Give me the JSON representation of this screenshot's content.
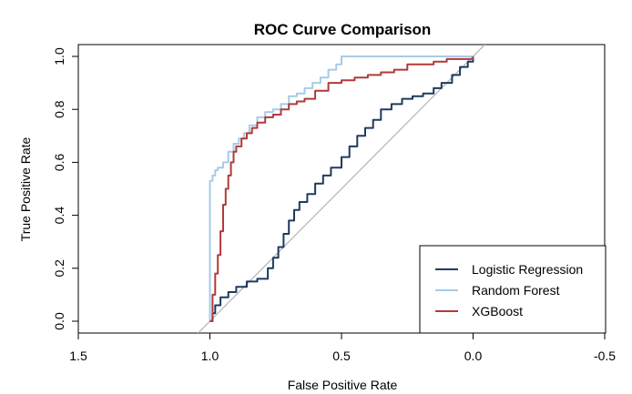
{
  "chart_data": {
    "type": "line",
    "title": "ROC Curve Comparison",
    "xlabel": "False Positive Rate",
    "ylabel": "True Positive Rate",
    "x_axis_reversed": true,
    "xlim": [
      1.5,
      -0.5
    ],
    "ylim": [
      0.0,
      1.0
    ],
    "x_ticks": [
      "1.5",
      "1.0",
      "0.5",
      "0.0",
      "-0.5"
    ],
    "y_ticks": [
      "0.0",
      "0.2",
      "0.4",
      "0.6",
      "0.8",
      "1.0"
    ],
    "legend_position": "bottom-right",
    "grid": false,
    "reference_line": {
      "points": [
        [
          1.05,
          -0.05
        ],
        [
          -0.05,
          1.05
        ]
      ],
      "color": "#b3b3b3"
    },
    "series": [
      {
        "name": "Logistic Regression",
        "color": "#1f3a5f",
        "x": [
          1.0,
          0.99,
          0.98,
          0.96,
          0.93,
          0.9,
          0.86,
          0.82,
          0.78,
          0.76,
          0.74,
          0.72,
          0.7,
          0.68,
          0.66,
          0.63,
          0.6,
          0.57,
          0.54,
          0.5,
          0.47,
          0.44,
          0.41,
          0.38,
          0.35,
          0.31,
          0.27,
          0.23,
          0.19,
          0.15,
          0.12,
          0.08,
          0.05,
          0.02,
          0.0
        ],
        "y": [
          0.0,
          0.03,
          0.06,
          0.09,
          0.11,
          0.13,
          0.15,
          0.16,
          0.2,
          0.24,
          0.28,
          0.33,
          0.38,
          0.42,
          0.45,
          0.48,
          0.52,
          0.55,
          0.58,
          0.62,
          0.66,
          0.7,
          0.73,
          0.76,
          0.8,
          0.82,
          0.84,
          0.85,
          0.86,
          0.88,
          0.9,
          0.93,
          0.96,
          0.98,
          1.0
        ]
      },
      {
        "name": "Random Forest",
        "color": "#a6cbe8",
        "x": [
          1.0,
          1.0,
          0.99,
          0.98,
          0.97,
          0.95,
          0.93,
          0.91,
          0.89,
          0.87,
          0.85,
          0.82,
          0.79,
          0.76,
          0.73,
          0.7,
          0.67,
          0.64,
          0.61,
          0.58,
          0.55,
          0.52,
          0.5,
          0.45,
          0.35,
          0.2,
          0.0
        ],
        "y": [
          0.0,
          0.53,
          0.55,
          0.57,
          0.58,
          0.6,
          0.64,
          0.67,
          0.69,
          0.71,
          0.74,
          0.77,
          0.79,
          0.8,
          0.82,
          0.85,
          0.86,
          0.88,
          0.9,
          0.92,
          0.95,
          0.97,
          1.0,
          1.0,
          1.0,
          1.0,
          1.0
        ]
      },
      {
        "name": "XGBoost",
        "color": "#b03a3a",
        "x": [
          1.0,
          0.99,
          0.98,
          0.97,
          0.96,
          0.95,
          0.94,
          0.93,
          0.92,
          0.91,
          0.9,
          0.88,
          0.86,
          0.84,
          0.82,
          0.79,
          0.76,
          0.73,
          0.7,
          0.67,
          0.64,
          0.6,
          0.55,
          0.5,
          0.45,
          0.4,
          0.35,
          0.3,
          0.25,
          0.2,
          0.15,
          0.1,
          0.05,
          0.0
        ],
        "y": [
          0.0,
          0.1,
          0.18,
          0.25,
          0.34,
          0.44,
          0.5,
          0.55,
          0.6,
          0.64,
          0.66,
          0.69,
          0.71,
          0.73,
          0.75,
          0.77,
          0.78,
          0.8,
          0.82,
          0.83,
          0.84,
          0.87,
          0.9,
          0.91,
          0.92,
          0.93,
          0.94,
          0.95,
          0.97,
          0.97,
          0.98,
          0.99,
          0.99,
          1.0
        ]
      }
    ]
  }
}
